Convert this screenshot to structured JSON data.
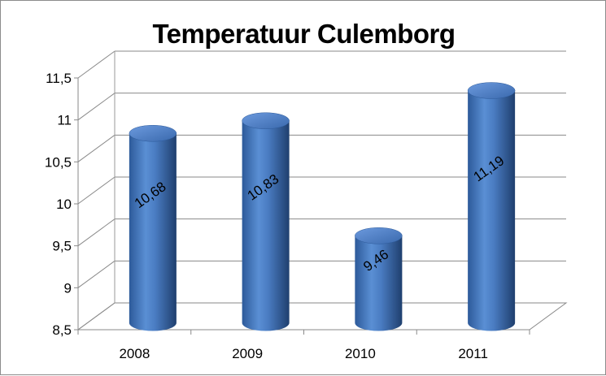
{
  "chart_data": {
    "type": "bar",
    "title": "Temperatuur Culemborg",
    "xlabel": "",
    "ylabel": "",
    "categories": [
      "2008",
      "2009",
      "2010",
      "2011"
    ],
    "values": [
      10.68,
      10.83,
      9.46,
      11.19
    ],
    "data_labels": [
      "10,68",
      "10,83",
      "9,46",
      "11,19"
    ],
    "y_ticks": [
      8.5,
      9,
      9.5,
      10,
      10.5,
      11,
      11.5
    ],
    "y_tick_labels": [
      "8,5",
      "9",
      "9,5",
      "10",
      "10,5",
      "11",
      "11,5"
    ],
    "ylim": [
      8.5,
      11.5
    ],
    "grid": true,
    "legend": "none",
    "bar_shape": "3d-cylinder",
    "bar_color": "#4a7cc2"
  }
}
